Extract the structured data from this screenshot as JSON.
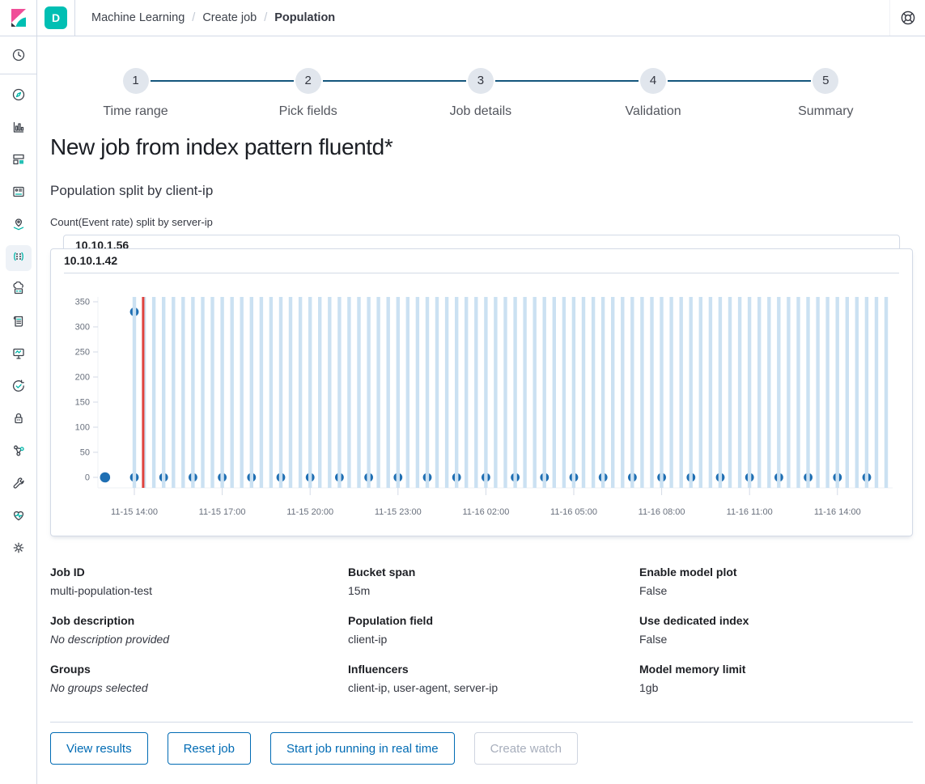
{
  "topbar": {
    "space_badge": "D",
    "breadcrumbs": [
      "Machine Learning",
      "Create job",
      "Population"
    ]
  },
  "sidebar": {
    "selected": "machine-learning",
    "items": [
      "recent",
      "discover",
      "visualize",
      "dashboard",
      "canvas",
      "maps",
      "machine-learning",
      "infrastructure",
      "logs",
      "apm",
      "uptime",
      "siem",
      "graph",
      "dev-tools",
      "monitoring",
      "management"
    ]
  },
  "stepper": {
    "steps": [
      {
        "number": "1",
        "label": "Time range"
      },
      {
        "number": "2",
        "label": "Pick fields"
      },
      {
        "number": "3",
        "label": "Job details"
      },
      {
        "number": "4",
        "label": "Validation"
      },
      {
        "number": "5",
        "label": "Summary"
      }
    ]
  },
  "page": {
    "title": "New job from index pattern fluentd*",
    "subtitle": "Population split by client-ip",
    "chart_caption": "Count(Event rate) split by server-ip"
  },
  "cards": {
    "back_title": "10.10.1.56",
    "front_title": "10.10.1.42"
  },
  "chart_data": {
    "type": "scatter",
    "title": "10.10.1.42",
    "ylim": [
      0,
      350
    ],
    "y_ticks": [
      0,
      50,
      100,
      150,
      200,
      250,
      300,
      350
    ],
    "x_tick_labels": [
      "11-15 14:00",
      "11-15 17:00",
      "11-15 20:00",
      "11-15 23:00",
      "11-16 02:00",
      "11-16 05:00",
      "11-16 08:00",
      "11-16 11:00",
      "11-16 14:00"
    ],
    "x_tick_hours": [
      1,
      4,
      7,
      10,
      13,
      16,
      19,
      22,
      25
    ],
    "bands": {
      "start_hour": 1,
      "interval_hours": 0.3333,
      "count": 78,
      "color": "#cbe1f2"
    },
    "dots": {
      "color": "#1f6fb3",
      "zero_value": 0,
      "zero_hours": [
        0,
        1,
        2,
        3,
        4,
        5,
        6,
        7,
        8,
        9,
        10,
        11,
        12,
        13,
        14,
        15,
        16,
        17,
        18,
        19,
        20,
        21,
        22,
        23,
        24,
        25,
        26
      ]
    },
    "anomaly_dot": {
      "hour": 1,
      "value": 330
    },
    "marker_line": {
      "hour": 1.3,
      "color": "#e0433e"
    },
    "grid": false,
    "legend": false
  },
  "details": {
    "columns": [
      [
        {
          "label": "Job ID",
          "value": "multi-population-test",
          "italic": false
        },
        {
          "label": "Job description",
          "value": "No description provided",
          "italic": true
        },
        {
          "label": "Groups",
          "value": "No groups selected",
          "italic": true
        }
      ],
      [
        {
          "label": "Bucket span",
          "value": "15m",
          "italic": false
        },
        {
          "label": "Population field",
          "value": "client-ip",
          "italic": false
        },
        {
          "label": "Influencers",
          "value": "client-ip, user-agent, server-ip",
          "italic": false
        }
      ],
      [
        {
          "label": "Enable model plot",
          "value": "False",
          "italic": false
        },
        {
          "label": "Use dedicated index",
          "value": "False",
          "italic": false
        },
        {
          "label": "Model memory limit",
          "value": "1gb",
          "italic": false
        }
      ]
    ]
  },
  "footer": {
    "buttons": [
      {
        "label": "View results",
        "disabled": false
      },
      {
        "label": "Reset job",
        "disabled": false
      },
      {
        "label": "Start job running in real time",
        "disabled": false
      },
      {
        "label": "Create watch",
        "disabled": true
      }
    ]
  },
  "colors": {
    "primary": "#006bb4",
    "accent_teal": "#00bfb3",
    "stepper_line": "#14567c",
    "border": "#d3dae6",
    "band_blue": "#cbe1f2",
    "dot_blue": "#1f6fb3",
    "marker_red": "#e0433e",
    "logo_pink": "#f04e98",
    "logo_dark": "#32353f"
  }
}
